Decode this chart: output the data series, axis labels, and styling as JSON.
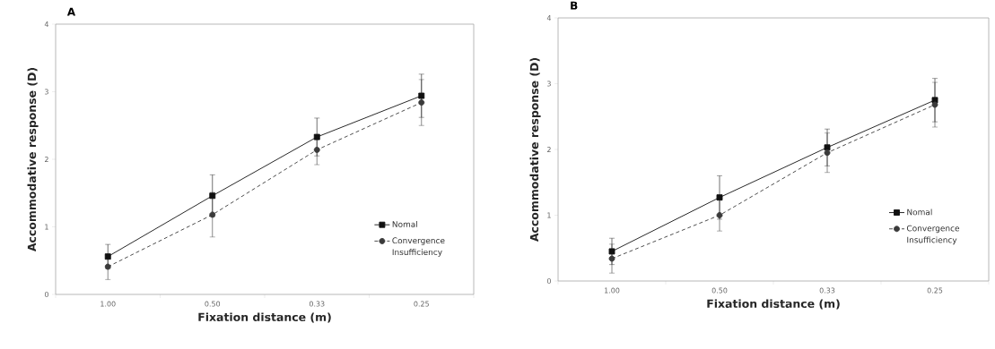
{
  "chart_data": [
    {
      "type": "line",
      "title": "A",
      "xlabel": "Fixation distance (m)",
      "ylabel": "Accommodative response (D)",
      "categories": [
        "1.00",
        "0.50",
        "0.33",
        "0.25"
      ],
      "ylim": [
        0,
        4
      ],
      "yticks": [
        0,
        1,
        2,
        3,
        4
      ],
      "legend": "bottom right",
      "series": [
        {
          "name": "Nomal",
          "color": "#111111",
          "marker": "square",
          "line_style": "solid",
          "values": [
            0.56,
            1.46,
            2.33,
            2.94
          ],
          "errors": [
            0.18,
            0.31,
            0.28,
            0.32
          ]
        },
        {
          "name": "Convergence Insufficiency",
          "color": "#3a3a3a",
          "marker": "circle",
          "line_style": "dashed",
          "values": [
            0.41,
            1.18,
            2.14,
            2.84
          ],
          "errors": [
            0.19,
            0.33,
            0.22,
            0.34
          ]
        }
      ]
    },
    {
      "type": "line",
      "title": "B",
      "xlabel": "Fixation distance (m)",
      "ylabel": "Accommodative response (D)",
      "categories": [
        "1.00",
        "0.50",
        "0.33",
        "0.25"
      ],
      "ylim": [
        0,
        4
      ],
      "yticks": [
        0,
        1,
        2,
        3,
        4
      ],
      "legend": "bottom right",
      "series": [
        {
          "name": "Nomal",
          "color": "#111111",
          "marker": "square",
          "line_style": "solid",
          "values": [
            0.45,
            1.27,
            2.03,
            2.75
          ],
          "errors": [
            0.2,
            0.33,
            0.28,
            0.33
          ]
        },
        {
          "name": "Convergence Insufficiency",
          "color": "#3a3a3a",
          "marker": "circle",
          "line_style": "dashed",
          "values": [
            0.34,
            1.0,
            1.95,
            2.68
          ],
          "errors": [
            0.22,
            0.24,
            0.3,
            0.34
          ]
        }
      ]
    }
  ]
}
